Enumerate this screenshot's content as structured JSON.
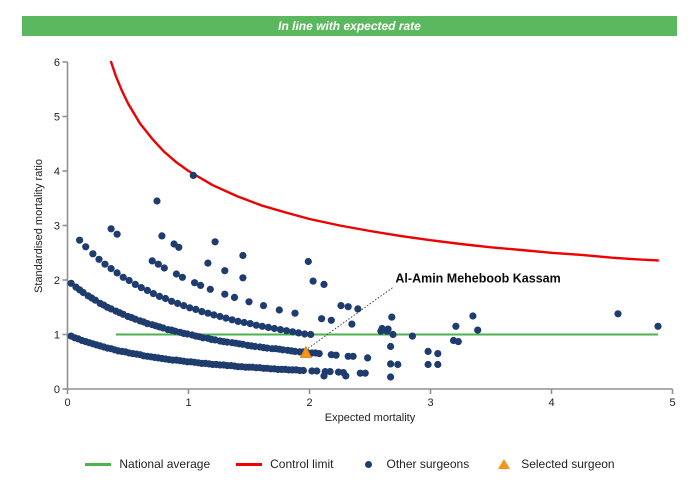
{
  "banner": {
    "text": "In line with expected rate",
    "bg_color": "#5cb85f",
    "text_color": "#ffffff"
  },
  "chart_data": {
    "type": "scatter",
    "title": "In line with expected rate",
    "xlabel": "Expected mortality",
    "ylabel": "Standardised mortality ratio",
    "xlim": [
      0,
      5
    ],
    "ylim": [
      0,
      6
    ],
    "x_ticks": [
      "0",
      "1",
      "2",
      "3",
      "4",
      "5"
    ],
    "y_ticks": [
      "0",
      "1",
      "2",
      "3",
      "4",
      "5",
      "6"
    ],
    "grid": false,
    "legend_position": "bottom",
    "national_average": {
      "y": 1,
      "x_start": 0.4,
      "x_end": 4.88,
      "color": "#4bb24e"
    },
    "control_limit": {
      "color": "#ee0000",
      "points": [
        [
          0.36,
          6.0
        ],
        [
          0.4,
          5.74
        ],
        [
          0.45,
          5.47
        ],
        [
          0.5,
          5.24
        ],
        [
          0.6,
          4.87
        ],
        [
          0.7,
          4.59
        ],
        [
          0.8,
          4.35
        ],
        [
          0.9,
          4.16
        ],
        [
          1.0,
          4.0
        ],
        [
          1.2,
          3.74
        ],
        [
          1.4,
          3.54
        ],
        [
          1.6,
          3.37
        ],
        [
          1.8,
          3.24
        ],
        [
          2.0,
          3.12
        ],
        [
          2.25,
          3.0
        ],
        [
          2.5,
          2.9
        ],
        [
          2.75,
          2.81
        ],
        [
          3.0,
          2.73
        ],
        [
          3.25,
          2.66
        ],
        [
          3.5,
          2.6
        ],
        [
          3.75,
          2.55
        ],
        [
          4.0,
          2.5
        ],
        [
          4.25,
          2.46
        ],
        [
          4.5,
          2.41
        ],
        [
          4.7,
          2.38
        ],
        [
          4.88,
          2.36
        ]
      ]
    },
    "other_surgeons": {
      "color": "#1e3c6e",
      "marker_radius": 3.6,
      "points": [
        [
          0.03,
          0.97
        ],
        [
          0.06,
          0.94
        ],
        [
          0.09,
          0.92
        ],
        [
          0.12,
          0.89
        ],
        [
          0.15,
          0.87
        ],
        [
          0.18,
          0.85
        ],
        [
          0.21,
          0.83
        ],
        [
          0.24,
          0.81
        ],
        [
          0.27,
          0.79
        ],
        [
          0.3,
          0.77
        ],
        [
          0.33,
          0.75
        ],
        [
          0.36,
          0.74
        ],
        [
          0.39,
          0.72
        ],
        [
          0.42,
          0.7
        ],
        [
          0.45,
          0.69
        ],
        [
          0.48,
          0.68
        ],
        [
          0.51,
          0.66
        ],
        [
          0.54,
          0.65
        ],
        [
          0.57,
          0.64
        ],
        [
          0.6,
          0.63
        ],
        [
          0.63,
          0.61
        ],
        [
          0.66,
          0.6
        ],
        [
          0.69,
          0.59
        ],
        [
          0.72,
          0.58
        ],
        [
          0.75,
          0.57
        ],
        [
          0.78,
          0.56
        ],
        [
          0.81,
          0.55
        ],
        [
          0.84,
          0.54
        ],
        [
          0.87,
          0.53
        ],
        [
          0.9,
          0.53
        ],
        [
          0.93,
          0.52
        ],
        [
          0.96,
          0.51
        ],
        [
          0.99,
          0.5
        ],
        [
          1.02,
          0.5
        ],
        [
          1.05,
          0.49
        ],
        [
          1.08,
          0.48
        ],
        [
          1.11,
          0.47
        ],
        [
          1.14,
          0.47
        ],
        [
          1.17,
          0.46
        ],
        [
          1.2,
          0.45
        ],
        [
          1.23,
          0.45
        ],
        [
          1.26,
          0.44
        ],
        [
          1.29,
          0.44
        ],
        [
          1.32,
          0.43
        ],
        [
          1.35,
          0.43
        ],
        [
          1.38,
          0.42
        ],
        [
          1.41,
          0.41
        ],
        [
          1.44,
          0.41
        ],
        [
          1.47,
          0.4
        ],
        [
          1.5,
          0.4
        ],
        [
          1.53,
          0.4
        ],
        [
          1.56,
          0.39
        ],
        [
          1.59,
          0.39
        ],
        [
          1.62,
          0.38
        ],
        [
          1.65,
          0.38
        ],
        [
          1.68,
          0.37
        ],
        [
          1.71,
          0.37
        ],
        [
          1.74,
          0.36
        ],
        [
          1.77,
          0.36
        ],
        [
          1.8,
          0.36
        ],
        [
          1.83,
          0.35
        ],
        [
          1.86,
          0.35
        ],
        [
          1.89,
          0.35
        ],
        [
          1.92,
          0.34
        ],
        [
          1.95,
          0.34
        ],
        [
          2.02,
          0.33
        ],
        [
          2.06,
          0.33
        ],
        [
          2.13,
          0.32
        ],
        [
          2.17,
          0.32
        ],
        [
          2.24,
          0.31
        ],
        [
          2.28,
          0.3
        ],
        [
          2.42,
          0.29
        ],
        [
          2.46,
          0.29
        ],
        [
          0.03,
          1.94
        ],
        [
          0.07,
          1.87
        ],
        [
          0.1,
          1.82
        ],
        [
          0.13,
          1.77
        ],
        [
          0.17,
          1.71
        ],
        [
          0.2,
          1.67
        ],
        [
          0.23,
          1.63
        ],
        [
          0.27,
          1.57
        ],
        [
          0.3,
          1.54
        ],
        [
          0.33,
          1.5
        ],
        [
          0.36,
          1.47
        ],
        [
          0.4,
          1.43
        ],
        [
          0.43,
          1.4
        ],
        [
          0.46,
          1.37
        ],
        [
          0.5,
          1.33
        ],
        [
          0.53,
          1.31
        ],
        [
          0.56,
          1.28
        ],
        [
          0.6,
          1.25
        ],
        [
          0.63,
          1.23
        ],
        [
          0.66,
          1.2
        ],
        [
          0.7,
          1.18
        ],
        [
          0.73,
          1.16
        ],
        [
          0.76,
          1.14
        ],
        [
          0.79,
          1.12
        ],
        [
          0.83,
          1.09
        ],
        [
          0.86,
          1.08
        ],
        [
          0.89,
          1.06
        ],
        [
          0.93,
          1.04
        ],
        [
          0.96,
          1.02
        ],
        [
          0.99,
          1.01
        ],
        [
          1.03,
          0.99
        ],
        [
          1.06,
          0.97
        ],
        [
          1.09,
          0.96
        ],
        [
          1.12,
          0.94
        ],
        [
          1.16,
          0.93
        ],
        [
          1.19,
          0.91
        ],
        [
          1.22,
          0.9
        ],
        [
          1.26,
          0.88
        ],
        [
          1.29,
          0.87
        ],
        [
          1.32,
          0.86
        ],
        [
          1.36,
          0.85
        ],
        [
          1.39,
          0.84
        ],
        [
          1.42,
          0.83
        ],
        [
          1.45,
          0.82
        ],
        [
          1.49,
          0.8
        ],
        [
          1.52,
          0.79
        ],
        [
          1.55,
          0.78
        ],
        [
          1.59,
          0.77
        ],
        [
          1.62,
          0.76
        ],
        [
          1.65,
          0.75
        ],
        [
          1.69,
          0.74
        ],
        [
          1.72,
          0.74
        ],
        [
          1.75,
          0.73
        ],
        [
          1.78,
          0.72
        ],
        [
          1.82,
          0.71
        ],
        [
          1.85,
          0.7
        ],
        [
          1.88,
          0.69
        ],
        [
          1.92,
          0.68
        ],
        [
          1.95,
          0.68
        ],
        [
          1.98,
          0.67
        ],
        [
          2.02,
          0.66
        ],
        [
          2.05,
          0.66
        ],
        [
          2.08,
          0.65
        ],
        [
          2.18,
          0.63
        ],
        [
          2.22,
          0.62
        ],
        [
          2.32,
          0.6
        ],
        [
          2.36,
          0.6
        ],
        [
          2.48,
          0.57
        ],
        [
          0.1,
          2.73
        ],
        [
          0.15,
          2.61
        ],
        [
          0.21,
          2.48
        ],
        [
          0.26,
          2.38
        ],
        [
          0.31,
          2.29
        ],
        [
          0.36,
          2.21
        ],
        [
          0.41,
          2.13
        ],
        [
          0.46,
          2.05
        ],
        [
          0.51,
          1.99
        ],
        [
          0.56,
          1.92
        ],
        [
          0.61,
          1.86
        ],
        [
          0.66,
          1.81
        ],
        [
          0.71,
          1.75
        ],
        [
          0.76,
          1.7
        ],
        [
          0.81,
          1.66
        ],
        [
          0.86,
          1.61
        ],
        [
          0.91,
          1.57
        ],
        [
          0.96,
          1.53
        ],
        [
          1.01,
          1.49
        ],
        [
          1.06,
          1.46
        ],
        [
          1.11,
          1.42
        ],
        [
          1.16,
          1.39
        ],
        [
          1.21,
          1.36
        ],
        [
          1.26,
          1.33
        ],
        [
          1.31,
          1.3
        ],
        [
          1.36,
          1.27
        ],
        [
          1.41,
          1.24
        ],
        [
          1.46,
          1.22
        ],
        [
          1.51,
          1.2
        ],
        [
          1.56,
          1.17
        ],
        [
          1.61,
          1.15
        ],
        [
          1.66,
          1.13
        ],
        [
          1.71,
          1.11
        ],
        [
          1.76,
          1.09
        ],
        [
          1.81,
          1.07
        ],
        [
          1.86,
          1.05
        ],
        [
          1.91,
          1.03
        ],
        [
          1.96,
          1.01
        ],
        [
          2.01,
          1.0
        ],
        [
          0.36,
          2.94
        ],
        [
          0.41,
          2.84
        ],
        [
          0.7,
          2.35
        ],
        [
          0.75,
          2.29
        ],
        [
          0.8,
          2.22
        ],
        [
          0.9,
          2.11
        ],
        [
          0.95,
          2.05
        ],
        [
          1.05,
          1.95
        ],
        [
          1.1,
          1.9
        ],
        [
          1.18,
          1.83
        ],
        [
          1.3,
          1.74
        ],
        [
          1.38,
          1.68
        ],
        [
          1.5,
          1.6
        ],
        [
          1.62,
          1.53
        ],
        [
          1.75,
          1.45
        ],
        [
          1.88,
          1.39
        ],
        [
          2.1,
          1.29
        ],
        [
          2.18,
          1.26
        ],
        [
          2.35,
          1.19
        ],
        [
          2.6,
          1.11
        ],
        [
          2.65,
          1.1
        ],
        [
          0.78,
          2.81
        ],
        [
          0.88,
          2.66
        ],
        [
          0.92,
          2.6
        ],
        [
          1.16,
          2.31
        ],
        [
          1.3,
          2.17
        ],
        [
          1.45,
          2.04
        ],
        [
          2.26,
          1.53
        ],
        [
          2.32,
          1.51
        ],
        [
          2.4,
          1.47
        ],
        [
          0.74,
          3.45
        ],
        [
          1.22,
          2.7
        ],
        [
          1.45,
          2.45
        ],
        [
          2.03,
          1.98
        ],
        [
          2.12,
          1.92
        ],
        [
          1.99,
          2.34
        ],
        [
          1.04,
          3.92
        ],
        [
          2.12,
          0.24
        ],
        [
          2.3,
          0.24
        ],
        [
          2.67,
          0.22
        ],
        [
          2.67,
          0.46
        ],
        [
          2.73,
          0.45
        ],
        [
          2.98,
          0.45
        ],
        [
          3.06,
          0.45
        ],
        [
          2.98,
          0.69
        ],
        [
          3.06,
          0.65
        ],
        [
          2.67,
          0.78
        ],
        [
          2.69,
          1.0
        ],
        [
          2.85,
          0.97
        ],
        [
          2.59,
          1.06
        ],
        [
          2.64,
          1.06
        ],
        [
          2.68,
          1.32
        ],
        [
          3.19,
          0.89
        ],
        [
          3.23,
          0.87
        ],
        [
          3.21,
          1.15
        ],
        [
          3.35,
          1.34
        ],
        [
          3.39,
          1.08
        ],
        [
          4.55,
          1.38
        ],
        [
          4.88,
          1.15
        ]
      ]
    },
    "selected_surgeon": {
      "color": "#f7941e",
      "x": 1.97,
      "y": 0.67,
      "label": "Al-Amin Meheboob Kassam",
      "label_x": 2.71,
      "label_y": 1.95
    }
  },
  "legend": {
    "items": [
      {
        "label": "National average",
        "marker": "line",
        "color": "#4bb24e"
      },
      {
        "label": "Control limit",
        "marker": "line",
        "color": "#ee0000"
      },
      {
        "label": "Other surgeons",
        "marker": "dot",
        "color": "#1e3c6e"
      },
      {
        "label": "Selected surgeon",
        "marker": "triangle",
        "color": "#f7941e"
      }
    ]
  }
}
